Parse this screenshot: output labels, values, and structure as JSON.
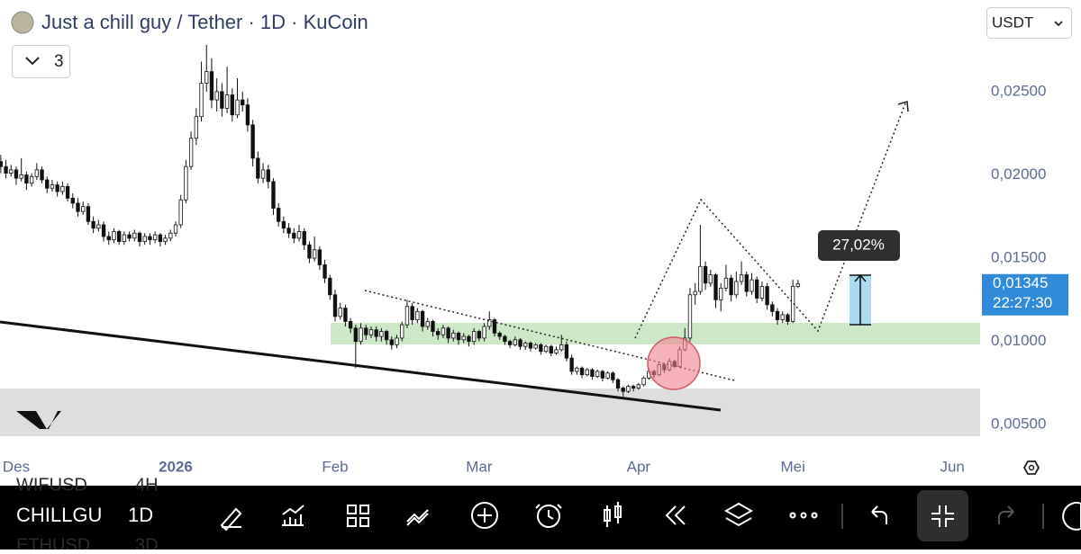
{
  "header": {
    "title": "Just a chill guy / Tether · 1D · KuCoin",
    "layers_count": "3",
    "currency": "USDT"
  },
  "chart_data": {
    "type": "candlestick",
    "x": [
      -3,
      -2,
      -1,
      0,
      1,
      2,
      3,
      4,
      5,
      6,
      7,
      8,
      9,
      10,
      11,
      12,
      13,
      14,
      15,
      16,
      17,
      18,
      19,
      20,
      21,
      22,
      23,
      24,
      25,
      26,
      27,
      28,
      29,
      30,
      31,
      32,
      33,
      34,
      35,
      36,
      37,
      38,
      39,
      40,
      41,
      42,
      43,
      44,
      45,
      46,
      47,
      48,
      49,
      50,
      51,
      52,
      53,
      54,
      55,
      56,
      57,
      58,
      59,
      60,
      61,
      62,
      63,
      64,
      65,
      66,
      67,
      68,
      69,
      70,
      71,
      72,
      73,
      74,
      75,
      76,
      77,
      78,
      79,
      80,
      81,
      82,
      83,
      84,
      85,
      86,
      87,
      88,
      89,
      90,
      91,
      92,
      93,
      94,
      95,
      96,
      97,
      98,
      99,
      100,
      101,
      102,
      103,
      104,
      105,
      106,
      107,
      108,
      109,
      110,
      111,
      112,
      113,
      114,
      115,
      116,
      117,
      118,
      119,
      120,
      121,
      122,
      123,
      124,
      125,
      126,
      127,
      128,
      129,
      130,
      131,
      132,
      133,
      134,
      135,
      136,
      137,
      138,
      139,
      140,
      141,
      142,
      143,
      144,
      145,
      146,
      147,
      148,
      149,
      150,
      151,
      152
    ],
    "ohlc": [
      [
        0.0208,
        0.0212,
        0.0201,
        0.0205
      ],
      [
        0.0205,
        0.0209,
        0.0198,
        0.0201
      ],
      [
        0.0201,
        0.0206,
        0.0199,
        0.0203
      ],
      [
        0.0203,
        0.0205,
        0.0194,
        0.0198
      ],
      [
        0.0198,
        0.021,
        0.0196,
        0.02
      ],
      [
        0.02,
        0.0202,
        0.0191,
        0.0195
      ],
      [
        0.0195,
        0.0201,
        0.0193,
        0.0199
      ],
      [
        0.0199,
        0.0207,
        0.0197,
        0.0203
      ],
      [
        0.0203,
        0.0205,
        0.0195,
        0.0197
      ],
      [
        0.0197,
        0.0199,
        0.0189,
        0.0192
      ],
      [
        0.0192,
        0.0197,
        0.019,
        0.0194
      ],
      [
        0.0194,
        0.0196,
        0.0187,
        0.019
      ],
      [
        0.019,
        0.0196,
        0.0188,
        0.0193
      ],
      [
        0.0193,
        0.0195,
        0.0184,
        0.0186
      ],
      [
        0.0186,
        0.0189,
        0.018,
        0.0183
      ],
      [
        0.0183,
        0.0186,
        0.0175,
        0.0178
      ],
      [
        0.0178,
        0.0184,
        0.0176,
        0.0181
      ],
      [
        0.0181,
        0.0183,
        0.017,
        0.0172
      ],
      [
        0.0172,
        0.0175,
        0.0165,
        0.0168
      ],
      [
        0.0168,
        0.0173,
        0.0166,
        0.017
      ],
      [
        0.017,
        0.0172,
        0.016,
        0.0163
      ],
      [
        0.0163,
        0.0166,
        0.0158,
        0.0161
      ],
      [
        0.0161,
        0.0168,
        0.0159,
        0.0166
      ],
      [
        0.0166,
        0.0167,
        0.0158,
        0.016
      ],
      [
        0.016,
        0.0166,
        0.0158,
        0.0164
      ],
      [
        0.0164,
        0.0166,
        0.016,
        0.0162
      ],
      [
        0.0162,
        0.0167,
        0.016,
        0.0165
      ],
      [
        0.0165,
        0.0166,
        0.0157,
        0.016
      ],
      [
        0.016,
        0.0165,
        0.0158,
        0.0163
      ],
      [
        0.0163,
        0.0165,
        0.0158,
        0.0161
      ],
      [
        0.0161,
        0.0166,
        0.0159,
        0.0164
      ],
      [
        0.0164,
        0.0165,
        0.0157,
        0.016
      ],
      [
        0.016,
        0.0164,
        0.0158,
        0.0162
      ],
      [
        0.0162,
        0.0167,
        0.016,
        0.0165
      ],
      [
        0.0165,
        0.0172,
        0.0163,
        0.017
      ],
      [
        0.017,
        0.0188,
        0.0168,
        0.0185
      ],
      [
        0.0185,
        0.0209,
        0.0183,
        0.0205
      ],
      [
        0.0205,
        0.0226,
        0.0203,
        0.0222
      ],
      [
        0.0222,
        0.024,
        0.0218,
        0.0235
      ],
      [
        0.0235,
        0.0268,
        0.0232,
        0.0255
      ],
      [
        0.0255,
        0.0278,
        0.025,
        0.0262
      ],
      [
        0.0262,
        0.027,
        0.024,
        0.0245
      ],
      [
        0.0245,
        0.0258,
        0.0238,
        0.025
      ],
      [
        0.025,
        0.0255,
        0.0235,
        0.024
      ],
      [
        0.024,
        0.0265,
        0.0237,
        0.0248
      ],
      [
        0.0248,
        0.0252,
        0.0232,
        0.0236
      ],
      [
        0.0236,
        0.0258,
        0.0234,
        0.0245
      ],
      [
        0.0245,
        0.025,
        0.0238,
        0.0242
      ],
      [
        0.0242,
        0.0246,
        0.0226,
        0.023
      ],
      [
        0.023,
        0.0233,
        0.0205,
        0.021
      ],
      [
        0.021,
        0.0214,
        0.0195,
        0.0198
      ],
      [
        0.0198,
        0.0207,
        0.0195,
        0.0203
      ],
      [
        0.0203,
        0.0206,
        0.0192,
        0.0196
      ],
      [
        0.0196,
        0.0198,
        0.0176,
        0.018
      ],
      [
        0.018,
        0.0183,
        0.0169,
        0.0172
      ],
      [
        0.0172,
        0.0175,
        0.0165,
        0.0168
      ],
      [
        0.0168,
        0.0171,
        0.0162,
        0.0165
      ],
      [
        0.0165,
        0.0168,
        0.0159,
        0.0162
      ],
      [
        0.0162,
        0.017,
        0.016,
        0.0166
      ],
      [
        0.0166,
        0.0168,
        0.0155,
        0.0158
      ],
      [
        0.0158,
        0.016,
        0.0147,
        0.015
      ],
      [
        0.015,
        0.0163,
        0.0148,
        0.0155
      ],
      [
        0.0155,
        0.0157,
        0.0143,
        0.0146
      ],
      [
        0.0146,
        0.0149,
        0.0135,
        0.0138
      ],
      [
        0.0138,
        0.014,
        0.0125,
        0.0128
      ],
      [
        0.0128,
        0.0131,
        0.0112,
        0.0115
      ],
      [
        0.0115,
        0.0123,
        0.0113,
        0.012
      ],
      [
        0.012,
        0.0122,
        0.0109,
        0.0112
      ],
      [
        0.0112,
        0.0114,
        0.0105,
        0.0108
      ],
      [
        0.0108,
        0.011,
        0.0084,
        0.01
      ],
      [
        0.01,
        0.0111,
        0.0098,
        0.0108
      ],
      [
        0.0108,
        0.011,
        0.0101,
        0.0104
      ],
      [
        0.0104,
        0.0109,
        0.0102,
        0.0107
      ],
      [
        0.0107,
        0.0109,
        0.01,
        0.0103
      ],
      [
        0.0103,
        0.0108,
        0.01,
        0.0106
      ],
      [
        0.0106,
        0.0107,
        0.0098,
        0.0101
      ],
      [
        0.0101,
        0.0103,
        0.0095,
        0.0098
      ],
      [
        0.0098,
        0.0104,
        0.0096,
        0.0102
      ],
      [
        0.0102,
        0.0112,
        0.01,
        0.011
      ],
      [
        0.011,
        0.0125,
        0.0108,
        0.0121
      ],
      [
        0.0121,
        0.0123,
        0.011,
        0.0113
      ],
      [
        0.0113,
        0.012,
        0.0111,
        0.0118
      ],
      [
        0.0118,
        0.0119,
        0.0106,
        0.0109
      ],
      [
        0.0109,
        0.0114,
        0.0107,
        0.0112
      ],
      [
        0.0112,
        0.0113,
        0.0103,
        0.0106
      ],
      [
        0.0106,
        0.0108,
        0.0101,
        0.0104
      ],
      [
        0.0104,
        0.011,
        0.0102,
        0.0108
      ],
      [
        0.0108,
        0.0109,
        0.0099,
        0.0102
      ],
      [
        0.0102,
        0.0107,
        0.01,
        0.0105
      ],
      [
        0.0105,
        0.0106,
        0.0098,
        0.0101
      ],
      [
        0.0101,
        0.0105,
        0.0099,
        0.0103
      ],
      [
        0.0103,
        0.0104,
        0.0097,
        0.01
      ],
      [
        0.01,
        0.0108,
        0.0098,
        0.0106
      ],
      [
        0.0106,
        0.0107,
        0.01,
        0.0102
      ],
      [
        0.0102,
        0.0111,
        0.01,
        0.0109
      ],
      [
        0.0109,
        0.0118,
        0.0107,
        0.0113
      ],
      [
        0.0113,
        0.0114,
        0.0103,
        0.0105
      ],
      [
        0.0105,
        0.0106,
        0.0101,
        0.0103
      ],
      [
        0.0103,
        0.0104,
        0.0098,
        0.01
      ],
      [
        0.01,
        0.0101,
        0.0096,
        0.0098
      ],
      [
        0.0098,
        0.0103,
        0.0097,
        0.0101
      ],
      [
        0.0101,
        0.0102,
        0.0095,
        0.0097
      ],
      [
        0.0097,
        0.01,
        0.0095,
        0.0099
      ],
      [
        0.0099,
        0.01,
        0.0094,
        0.0096
      ],
      [
        0.0096,
        0.0099,
        0.0095,
        0.0098
      ],
      [
        0.0098,
        0.0099,
        0.0092,
        0.0094
      ],
      [
        0.0094,
        0.0098,
        0.0093,
        0.0097
      ],
      [
        0.0097,
        0.0098,
        0.0091,
        0.0093
      ],
      [
        0.0093,
        0.0097,
        0.0092,
        0.0095
      ],
      [
        0.0095,
        0.0104,
        0.0094,
        0.0098
      ],
      [
        0.0098,
        0.01,
        0.0088,
        0.009
      ],
      [
        0.009,
        0.0092,
        0.008,
        0.0082
      ],
      [
        0.0082,
        0.0085,
        0.008,
        0.0084
      ],
      [
        0.0084,
        0.0085,
        0.0078,
        0.008
      ],
      [
        0.008,
        0.0084,
        0.0079,
        0.0083
      ],
      [
        0.0083,
        0.0084,
        0.0077,
        0.0079
      ],
      [
        0.0079,
        0.0083,
        0.0078,
        0.0082
      ],
      [
        0.0082,
        0.0083,
        0.0076,
        0.0078
      ],
      [
        0.0078,
        0.0082,
        0.0077,
        0.0081
      ],
      [
        0.0081,
        0.0082,
        0.0075,
        0.0077
      ],
      [
        0.0077,
        0.0078,
        0.007,
        0.0072
      ],
      [
        0.0072,
        0.0073,
        0.0067,
        0.007
      ],
      [
        0.007,
        0.0074,
        0.0069,
        0.0073
      ],
      [
        0.0073,
        0.0074,
        0.007,
        0.0072
      ],
      [
        0.0072,
        0.0075,
        0.0071,
        0.0074
      ],
      [
        0.0074,
        0.0079,
        0.0073,
        0.0078
      ],
      [
        0.0078,
        0.0084,
        0.0077,
        0.0082
      ],
      [
        0.0082,
        0.0083,
        0.0078,
        0.008
      ],
      [
        0.008,
        0.0088,
        0.0079,
        0.0086
      ],
      [
        0.0086,
        0.0087,
        0.0081,
        0.0083
      ],
      [
        0.0083,
        0.009,
        0.0082,
        0.0088
      ],
      [
        0.0088,
        0.0089,
        0.0084,
        0.0085
      ],
      [
        0.0085,
        0.0097,
        0.0084,
        0.0095
      ],
      [
        0.0095,
        0.0108,
        0.0094,
        0.0102
      ],
      [
        0.0102,
        0.0132,
        0.01,
        0.0128
      ],
      [
        0.0128,
        0.0135,
        0.0122,
        0.013
      ],
      [
        0.013,
        0.017,
        0.0128,
        0.0145
      ],
      [
        0.0145,
        0.0148,
        0.0131,
        0.0135
      ],
      [
        0.0135,
        0.0143,
        0.0133,
        0.014
      ],
      [
        0.014,
        0.0141,
        0.012,
        0.0125
      ],
      [
        0.0125,
        0.0135,
        0.0118,
        0.0132
      ],
      [
        0.0132,
        0.0146,
        0.013,
        0.0138
      ],
      [
        0.0138,
        0.014,
        0.0124,
        0.0128
      ],
      [
        0.0128,
        0.0142,
        0.0126,
        0.0136
      ],
      [
        0.0136,
        0.0148,
        0.0134,
        0.014
      ],
      [
        0.014,
        0.0142,
        0.0127,
        0.013
      ],
      [
        0.013,
        0.0141,
        0.0128,
        0.0137
      ],
      [
        0.0137,
        0.0139,
        0.0123,
        0.0126
      ],
      [
        0.0126,
        0.0136,
        0.0124,
        0.0133
      ],
      [
        0.0133,
        0.0135,
        0.0119,
        0.0122
      ],
      [
        0.0122,
        0.0124,
        0.0115,
        0.0118
      ],
      [
        0.0118,
        0.012,
        0.011,
        0.0113
      ],
      [
        0.0113,
        0.0118,
        0.0111,
        0.0116
      ],
      [
        0.0116,
        0.0117,
        0.011,
        0.0112
      ],
      [
        0.0112,
        0.0137,
        0.0111,
        0.0133
      ],
      [
        0.0133,
        0.0137,
        0.0132,
        0.01345
      ]
    ],
    "xlim": [
      -3.15,
      187.4
    ],
    "xticks": [
      {
        "value": 0,
        "label": "Des"
      },
      {
        "value": 31,
        "label": "2026"
      },
      {
        "value": 62,
        "label": "Feb"
      },
      {
        "value": 90,
        "label": "Mar"
      },
      {
        "value": 121,
        "label": "Apr"
      },
      {
        "value": 151,
        "label": "Mei"
      },
      {
        "value": 182,
        "label": "Jun"
      }
    ],
    "ylim": [
      0.0035,
      0.0305
    ],
    "yticks": [
      {
        "value": 0.005,
        "label": "0,00500"
      },
      {
        "value": 0.01,
        "label": "0,01000"
      },
      {
        "value": 0.015,
        "label": "0,01500"
      },
      {
        "value": 0.02,
        "label": "0,02000"
      },
      {
        "value": 0.025,
        "label": "0,02500"
      }
    ],
    "last_price": {
      "value": 0.01345,
      "label": "0,01345"
    },
    "countdown": "22:27:30",
    "measure_label": "27,02%"
  },
  "toolbar": {
    "symbol": "CHILLGU",
    "interval": "1D"
  },
  "watchlist_behind": [
    [
      "WIFUSD",
      "4H"
    ],
    [
      "ETHUSD",
      "3D"
    ]
  ]
}
